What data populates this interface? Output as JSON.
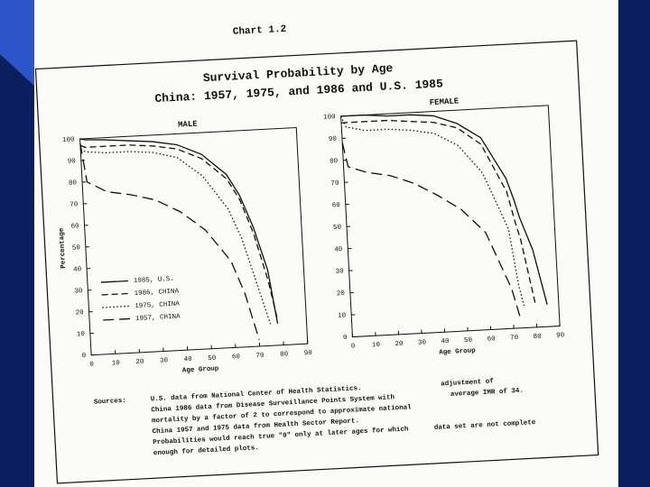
{
  "header": {
    "label": "Chart 1.2",
    "title": "Survival Probability by Age",
    "subtitle": "China: 1957, 1975, and 1986 and U.S. 1985"
  },
  "chart_data": [
    {
      "type": "line",
      "title": "MALE",
      "x_label": "Age Group",
      "y_label": "Percentage",
      "x": [
        0,
        2,
        10,
        20,
        30,
        40,
        50,
        60,
        65,
        70,
        75,
        78
      ],
      "xlim": [
        0,
        90
      ],
      "ylim": [
        0,
        100
      ],
      "xticks": [
        0,
        10,
        20,
        30,
        40,
        50,
        60,
        70,
        80,
        90
      ],
      "yticks": [
        0,
        10,
        20,
        30,
        40,
        50,
        60,
        70,
        80,
        90,
        100
      ],
      "legend": "lower left",
      "series": [
        {
          "name": "1985, U.S.",
          "color": "#111111",
          "dash": "none",
          "values": [
            100,
            99.5,
            99,
            98,
            97,
            95,
            90,
            80,
            70,
            55,
            35,
            10
          ]
        },
        {
          "name": "1986, CHINA",
          "color": "#111111",
          "dash": "7 4",
          "values": [
            97,
            96,
            96,
            96,
            95,
            93,
            88,
            78,
            68,
            52,
            30,
            12
          ]
        },
        {
          "name": "1975, CHINA",
          "color": "#111111",
          "dash": "1.5 2.5",
          "values": [
            95,
            94,
            93,
            93,
            92,
            89,
            80,
            64,
            50,
            30,
            10,
            null
          ]
        },
        {
          "name": "1957, CHINA",
          "color": "#111111",
          "dash": "12 6",
          "values": [
            98,
            80,
            75,
            73,
            70,
            64,
            55,
            40,
            25,
            3,
            null,
            null
          ]
        }
      ]
    },
    {
      "type": "line",
      "title": "FEMALE",
      "x_label": "Age Group",
      "x": [
        0,
        2,
        10,
        20,
        30,
        40,
        50,
        60,
        70,
        73,
        75,
        80,
        85
      ],
      "xlim": [
        0,
        90
      ],
      "ylim": [
        0,
        100
      ],
      "xticks": [
        0,
        10,
        20,
        30,
        40,
        50,
        60,
        70,
        80,
        90
      ],
      "yticks": [
        0,
        10,
        20,
        30,
        40,
        50,
        60,
        70,
        80,
        90,
        100
      ],
      "series": [
        {
          "color": "#111111",
          "dash": "none",
          "values": [
            100,
            100,
            100,
            99,
            99,
            98,
            94,
            87,
            68,
            58,
            50,
            35,
            10
          ]
        },
        {
          "color": "#111111",
          "dash": "7 4",
          "values": [
            97,
            97,
            97,
            97,
            96,
            95,
            92,
            84,
            62,
            48,
            40,
            10,
            null
          ]
        },
        {
          "color": "#111111",
          "dash": "1.5 2.5",
          "values": [
            100,
            95,
            93,
            93,
            92,
            90,
            84,
            71,
            45,
            20,
            10,
            null,
            null
          ]
        },
        {
          "color": "#111111",
          "dash": "12 6",
          "values": [
            88,
            77,
            74,
            72,
            68,
            62,
            55,
            44,
            18,
            5,
            null,
            null,
            null
          ]
        }
      ]
    }
  ],
  "sources": {
    "label": "Sources:",
    "lines": [
      "U.S. data from National Center of Health Statistics.",
      "China 1986 data from Disease Surveillance Points System with",
      "mortality by a factor of 2 to correspond to approximate national",
      "China 1957 and 1975 data from Health Sector Report.",
      "Probabilities would reach true \"0\" only at later ages for which",
      "enough for detailed plots."
    ],
    "notes": [
      "adjustment of",
      "average IMR of 34.",
      "data set are not complete"
    ]
  }
}
